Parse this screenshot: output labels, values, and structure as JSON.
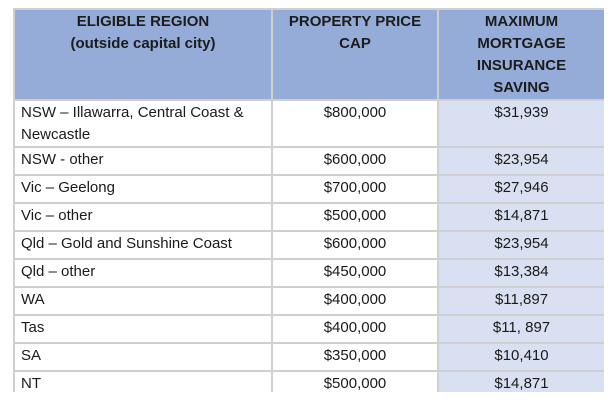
{
  "table": {
    "headers": {
      "region_line1": "ELIGIBLE REGION",
      "region_line2": "(outside capital city)",
      "cap_line1": "PROPERTY PRICE",
      "cap_line2": "CAP",
      "saving_line1": "MAXIMUM",
      "saving_line2": "MORTGAGE",
      "saving_line3": "INSURANCE",
      "saving_line4": "SAVING"
    },
    "rows": [
      {
        "region": "NSW – Illawarra, Central Coast & Newcastle",
        "cap": "$800,000",
        "saving": "$31,939"
      },
      {
        "region": "NSW - other",
        "cap": "$600,000",
        "saving": "$23,954"
      },
      {
        "region": "Vic – Geelong",
        "cap": "$700,000",
        "saving": "$27,946"
      },
      {
        "region": "Vic – other",
        "cap": "$500,000",
        "saving": "$14,871"
      },
      {
        "region": "Qld – Gold and Sunshine Coast",
        "cap": "$600,000",
        "saving": "$23,954"
      },
      {
        "region": "Qld – other",
        "cap": "$450,000",
        "saving": "$13,384"
      },
      {
        "region": "WA",
        "cap": "$400,000",
        "saving": "$11,897"
      },
      {
        "region": "Tas",
        "cap": "$400,000",
        "saving": "$11, 897"
      },
      {
        "region": "SA",
        "cap": "$350,000",
        "saving": "$10,410"
      },
      {
        "region": "NT",
        "cap": "$500,000",
        "saving": "$14,871"
      }
    ]
  },
  "colors": {
    "header_bg": "#95acd8",
    "saving_col_bg": "#d9e0f1",
    "border": "#cfcfcf"
  }
}
